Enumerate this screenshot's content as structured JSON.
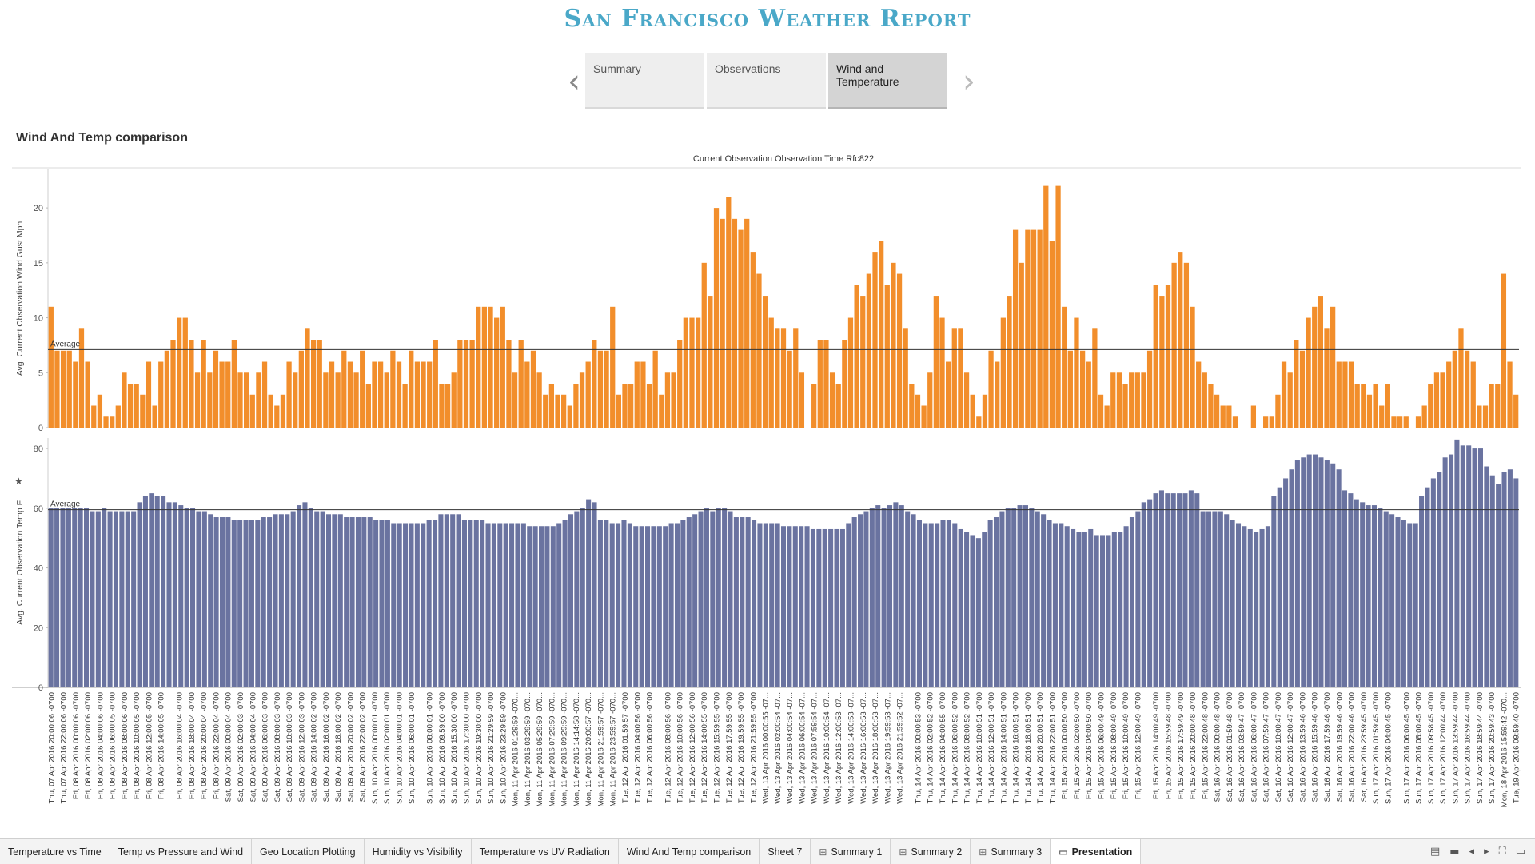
{
  "report_title": "San Francisco Weather Report",
  "story_points": [
    {
      "label": "Summary",
      "active": false
    },
    {
      "label": "Observations",
      "active": false
    },
    {
      "label": "Wind and Temperature",
      "active": true
    }
  ],
  "nav_icons": {
    "prev": "chevron-left-icon",
    "next": "chevron-right-icon"
  },
  "sheet_title": "Wind And Temp comparison",
  "chart_data": {
    "type": "bar",
    "title": "Current Observation Observation Time Rfc822",
    "axis_labels": [
      "Thu, 07 Apr 2016 20:00:06 -0700",
      "Thu, 07 Apr 2016 22:00:06 -0700",
      "Fri, 08 Apr 2016 00:00:06 -0700",
      "Fri, 08 Apr 2016 02:00:06 -0700",
      "Fri, 08 Apr 2016 04:00:06 -0700",
      "Fri, 08 Apr 2016 06:00:05 -0700",
      "Fri, 08 Apr 2016 08:00:06 -0700",
      "Fri, 08 Apr 2016 10:00:05 -0700",
      "Fri, 08 Apr 2016 12:00:05 -0700",
      "Fri, 08 Apr 2016 14:00:05 -0700",
      "Fri, 08 Apr 2016 16:00:04 -0700",
      "Fri, 08 Apr 2016 18:00:04 -0700",
      "Fri, 08 Apr 2016 20:00:04 -0700",
      "Fri, 08 Apr 2016 22:00:04 -0700",
      "Sat, 09 Apr 2016 00:00:04 -0700",
      "Sat, 09 Apr 2016 02:00:03 -0700",
      "Sat, 09 Apr 2016 04:00:04 -0700",
      "Sat, 09 Apr 2016 06:00:03 -0700",
      "Sat, 09 Apr 2016 08:00:03 -0700",
      "Sat, 09 Apr 2016 10:00:03 -0700",
      "Sat, 09 Apr 2016 12:00:03 -0700",
      "Sat, 09 Apr 2016 14:00:02 -0700",
      "Sat, 09 Apr 2016 16:00:02 -0700",
      "Sat, 09 Apr 2016 18:00:02 -0700",
      "Sat, 09 Apr 2016 20:00:02 -0700",
      "Sat, 09 Apr 2016 22:00:02 -0700",
      "Sun, 10 Apr 2016 00:00:01 -0700",
      "Sun, 10 Apr 2016 02:00:01 -0700",
      "Sun, 10 Apr 2016 04:00:01 -0700",
      "Sun, 10 Apr 2016 06:00:01 -0700",
      "Sun, 10 Apr 2016 08:00:01 -0700",
      "Sun, 10 Apr 2016 09:59:00 -0700",
      "Sun, 10 Apr 2016 15:30:00 -0700",
      "Sun, 10 Apr 2016 17:30:00 -0700",
      "Sun, 10 Apr 2016 19:30:00 -0700",
      "Sun, 10 Apr 2016 21:29:59 -0700",
      "Sun, 10 Apr 2016 23:29:59 -0700",
      "Mon, 11 Apr 2016 01:29:59 -070...",
      "Mon, 11 Apr 2016 03:29:59 -070...",
      "Mon, 11 Apr 2016 05:29:59 -070...",
      "Mon, 11 Apr 2016 07:29:59 -070...",
      "Mon, 11 Apr 2016 09:29:59 -070...",
      "Mon, 11 Apr 2016 14:14:58 -070...",
      "Mon, 11 Apr 2016 20:00:57 -070...",
      "Mon, 11 Apr 2016 21:59:57 -070...",
      "Mon, 11 Apr 2016 23:59:57 -070...",
      "Tue, 12 Apr 2016 01:59:57 -0700",
      "Tue, 12 Apr 2016 04:00:56 -0700",
      "Tue, 12 Apr 2016 06:00:56 -0700",
      "Tue, 12 Apr 2016 08:00:56 -0700",
      "Tue, 12 Apr 2016 10:00:56 -0700",
      "Tue, 12 Apr 2016 12:00:56 -0700",
      "Tue, 12 Apr 2016 14:00:55 -0700",
      "Tue, 12 Apr 2016 15:59:55 -0700",
      "Tue, 12 Apr 2016 17:59:55 -0700",
      "Tue, 12 Apr 2016 19:59:55 -0700",
      "Tue, 12 Apr 2016 21:59:55 -0700",
      "Wed, 13 Apr 2016 00:00:55 -07...",
      "Wed, 13 Apr 2016 02:00:54 -07...",
      "Wed, 13 Apr 2016 04:00:54 -07...",
      "Wed, 13 Apr 2016 06:00:54 -07...",
      "Wed, 13 Apr 2016 07:59:54 -07...",
      "Wed, 13 Apr 2016 10:00:54 -07...",
      "Wed, 13 Apr 2016 12:00:53 -07...",
      "Wed, 13 Apr 2016 14:00:53 -07...",
      "Wed, 13 Apr 2016 16:00:53 -07...",
      "Wed, 13 Apr 2016 18:00:53 -07...",
      "Wed, 13 Apr 2016 19:59:53 -07...",
      "Wed, 13 Apr 2016 21:59:52 -07...",
      "Thu, 14 Apr 2016 00:00:53 -0700",
      "Thu, 14 Apr 2016 02:00:52 -0700",
      "Thu, 14 Apr 2016 04:00:55 -0700",
      "Thu, 14 Apr 2016 06:00:52 -0700",
      "Thu, 14 Apr 2016 08:00:52 -0700",
      "Thu, 14 Apr 2016 10:00:51 -0700",
      "Thu, 14 Apr 2016 12:00:51 -0700",
      "Thu, 14 Apr 2016 14:00:51 -0700",
      "Thu, 14 Apr 2016 16:00:51 -0700",
      "Thu, 14 Apr 2016 18:00:51 -0700",
      "Thu, 14 Apr 2016 20:00:51 -0700",
      "Thu, 14 Apr 2016 22:00:51 -0700",
      "Fri, 15 Apr 2016 00:00:50 -0700",
      "Fri, 15 Apr 2016 02:00:50 -0700",
      "Fri, 15 Apr 2016 04:00:50 -0700",
      "Fri, 15 Apr 2016 06:00:49 -0700",
      "Fri, 15 Apr 2016 08:00:49 -0700",
      "Fri, 15 Apr 2016 10:00:49 -0700",
      "Fri, 15 Apr 2016 12:00:49 -0700",
      "Fri, 15 Apr 2016 14:00:49 -0700",
      "Fri, 15 Apr 2016 15:59:48 -0700",
      "Fri, 15 Apr 2016 17:59:49 -0700",
      "Fri, 15 Apr 2016 20:00:48 -0700",
      "Fri, 15 Apr 2016 22:00:48 -0700",
      "Sat, 16 Apr 2016 00:00:48 -0700",
      "Sat, 16 Apr 2016 01:59:48 -0700",
      "Sat, 16 Apr 2016 03:59:47 -0700",
      "Sat, 16 Apr 2016 06:00:47 -0700",
      "Sat, 16 Apr 2016 07:59:47 -0700",
      "Sat, 16 Apr 2016 10:00:47 -0700",
      "Sat, 16 Apr 2016 12:00:47 -0700",
      "Sat, 16 Apr 2016 13:59:46 -0700",
      "Sat, 16 Apr 2016 15:59:46 -0700",
      "Sat, 16 Apr 2016 17:59:46 -0700",
      "Sat, 16 Apr 2016 19:59:46 -0700",
      "Sat, 16 Apr 2016 22:00:46 -0700",
      "Sat, 16 Apr 2016 23:59:45 -0700",
      "Sun, 17 Apr 2016 01:59:45 -0700",
      "Sun, 17 Apr 2016 04:00:45 -0700",
      "Sun, 17 Apr 2016 06:00:45 -0700",
      "Sun, 17 Apr 2016 08:00:45 -0700",
      "Sun, 17 Apr 2016 09:58:45 -0700",
      "Sun, 17 Apr 2016 12:00:44 -0700",
      "Sun, 17 Apr 2016 13:59:44 -0700",
      "Sun, 17 Apr 2016 16:59:44 -0700",
      "Sun, 17 Apr 2016 18:59:44 -0700",
      "Sun, 17 Apr 2016 20:59:43 -0700",
      "Mon, 18 Apr 2016 15:59:42 -070...",
      "Tue, 19 Apr 2016 09:59:40 -0700"
    ],
    "series": [
      {
        "ylabel": "Avg. Current Observation Wind Gust Mph",
        "color": "#f28e2b",
        "ylim": [
          0,
          23.5
        ],
        "ticks": [
          0,
          5,
          10,
          15,
          20
        ],
        "average": 7.1,
        "average_label": "Average",
        "values": [
          11,
          7,
          7,
          7,
          6,
          9,
          6,
          2,
          3,
          1,
          1,
          2,
          5,
          4,
          4,
          3,
          6,
          2,
          6,
          7,
          8,
          10,
          10,
          8,
          5,
          8,
          5,
          7,
          6,
          6,
          8,
          5,
          5,
          3,
          5,
          6,
          3,
          2,
          3,
          6,
          5,
          7,
          9,
          8,
          8,
          5,
          6,
          5,
          7,
          6,
          5,
          7,
          4,
          6,
          6,
          5,
          7,
          6,
          4,
          7,
          6,
          6,
          6,
          8,
          4,
          4,
          5,
          8,
          8,
          8,
          11,
          11,
          11,
          10,
          11,
          8,
          5,
          8,
          6,
          7,
          5,
          3,
          4,
          3,
          3,
          2,
          4,
          5,
          6,
          8,
          7,
          7,
          11,
          3,
          4,
          4,
          6,
          6,
          4,
          7,
          3,
          5,
          5,
          8,
          10,
          10,
          10,
          15,
          12,
          20,
          19,
          21,
          19,
          18,
          19,
          16,
          14,
          12,
          10,
          9,
          9,
          7,
          9,
          5,
          0,
          4,
          8,
          8,
          5,
          4,
          8,
          10,
          13,
          12,
          14,
          16,
          17,
          13,
          15,
          14,
          9,
          4,
          3,
          2,
          5,
          12,
          10,
          6,
          9,
          9,
          5,
          3,
          1,
          3,
          7,
          6,
          10,
          12,
          18,
          15,
          18,
          18,
          18,
          22,
          17,
          22,
          11,
          7,
          10,
          7,
          6,
          9,
          3,
          2,
          5,
          5,
          4,
          5,
          5,
          5,
          7,
          13,
          12,
          13,
          15,
          16,
          15,
          11,
          6,
          5,
          4,
          3,
          2,
          2,
          1,
          0,
          0,
          2,
          0,
          1,
          1,
          3,
          6,
          5,
          8,
          7,
          10,
          11,
          12,
          9,
          11,
          6,
          6,
          6,
          4,
          4,
          3,
          4,
          2,
          4,
          1,
          1,
          1,
          0,
          1,
          2,
          4,
          5,
          5,
          6,
          7,
          9,
          7,
          6,
          2,
          2,
          4,
          4,
          14,
          6,
          3
        ]
      },
      {
        "ylabel": "Avg. Current Observation Temp F",
        "color": "#6a73a0",
        "ylim": [
          0,
          83.5
        ],
        "ticks": [
          0,
          20,
          40,
          60,
          80
        ],
        "average": 59.5,
        "average_label": "Average",
        "values": [
          60,
          60,
          60,
          60,
          60,
          60,
          60,
          59,
          59,
          60,
          59,
          59,
          59,
          59,
          59,
          62,
          64,
          65,
          64,
          64,
          62,
          62,
          61,
          60,
          60,
          59,
          59,
          58,
          57,
          57,
          57,
          56,
          56,
          56,
          56,
          56,
          57,
          57,
          58,
          58,
          58,
          59,
          61,
          62,
          60,
          59,
          59,
          58,
          58,
          58,
          57,
          57,
          57,
          57,
          57,
          56,
          56,
          56,
          55,
          55,
          55,
          55,
          55,
          55,
          56,
          56,
          58,
          58,
          58,
          58,
          56,
          56,
          56,
          56,
          55,
          55,
          55,
          55,
          55,
          55,
          55,
          54,
          54,
          54,
          54,
          54,
          55,
          56,
          58,
          59,
          60,
          63,
          62,
          56,
          56,
          55,
          55,
          56,
          55,
          54,
          54,
          54,
          54,
          54,
          54,
          55,
          55,
          56,
          57,
          58,
          59,
          60,
          59,
          60,
          60,
          59,
          57,
          57,
          57,
          56,
          55,
          55,
          55,
          55,
          54,
          54,
          54,
          54,
          54,
          53,
          53,
          53,
          53,
          53,
          53,
          55,
          57,
          58,
          59,
          60,
          61,
          60,
          61,
          62,
          61,
          59,
          58,
          56,
          55,
          55,
          55,
          56,
          56,
          55,
          53,
          52,
          51,
          50,
          52,
          56,
          57,
          59,
          60,
          60,
          61,
          61,
          60,
          59,
          58,
          56,
          55,
          55,
          54,
          53,
          52,
          52,
          53,
          51,
          51,
          51,
          52,
          52,
          54,
          57,
          59,
          62,
          63,
          65,
          66,
          65,
          65,
          65,
          65,
          66,
          65,
          59,
          59,
          59,
          59,
          58,
          56,
          55,
          54,
          53,
          52,
          53,
          54,
          64,
          67,
          70,
          73,
          76,
          77,
          78,
          78,
          77,
          76,
          75,
          73,
          66,
          65,
          63,
          62,
          61,
          61,
          60,
          59,
          58,
          57,
          56,
          55,
          55,
          64,
          67,
          70,
          72,
          77,
          78,
          83,
          81,
          81,
          80,
          80,
          74,
          71,
          68,
          72,
          73,
          70
        ]
      }
    ]
  },
  "sheet_tabs": [
    {
      "label": "Temperature vs Time",
      "icon": "",
      "active": false
    },
    {
      "label": "Temp vs Pressure and Wind",
      "icon": "",
      "active": false
    },
    {
      "label": "Geo Location Plotting",
      "icon": "",
      "active": false
    },
    {
      "label": "Humidity vs Visibility",
      "icon": "",
      "active": false
    },
    {
      "label": "Temperature vs UV Radiation",
      "icon": "",
      "active": false
    },
    {
      "label": "Wind And Temp comparison",
      "icon": "",
      "active": false
    },
    {
      "label": "Sheet 7",
      "icon": "",
      "active": false
    },
    {
      "label": "Summary 1",
      "icon": "dashboard-icon",
      "active": false
    },
    {
      "label": "Summary 2",
      "icon": "dashboard-icon",
      "active": false
    },
    {
      "label": "Summary 3",
      "icon": "dashboard-icon",
      "active": false
    },
    {
      "label": "Presentation",
      "icon": "story-icon",
      "active": true
    }
  ],
  "tabbar_controls": [
    "filmstrip-view-icon",
    "tabs-view-icon",
    "previous-sheet-icon",
    "next-sheet-icon",
    "fullscreen-icon",
    "presentation-mode-icon"
  ]
}
